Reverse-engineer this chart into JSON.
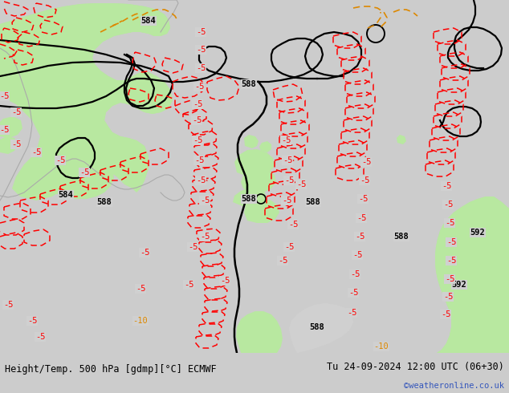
{
  "title_left": "Height/Temp. 500 hPa [gdmp][°C] ECMWF",
  "title_right": "Tu 24-09-2024 12:00 UTC (06+30)",
  "watermark": "©weatheronline.co.uk",
  "bg_color": "#d0d0d0",
  "green_fill": "#b8e8a0",
  "coast_color": "#aaaaaa",
  "figsize": [
    6.34,
    4.9
  ],
  "dpi": 100,
  "title_fontsize": 8.5,
  "watermark_color": "#3355bb",
  "watermark_fontsize": 7.5,
  "bottom_bar_color": "#cccccc",
  "z500_color": "black",
  "temp_neg5_color": "red",
  "temp_neg10_color": "#dd8800"
}
